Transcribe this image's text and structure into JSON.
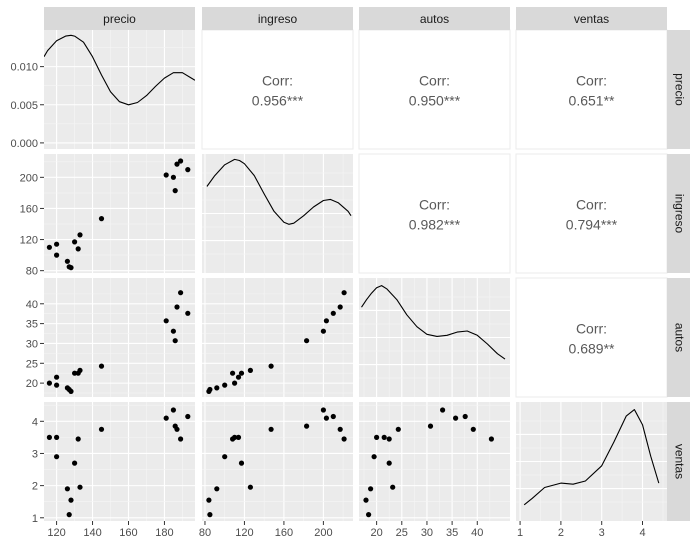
{
  "chart_data": {
    "type": "scatter",
    "subtype": "pairs-plot (ggpairs scatterplot matrix)",
    "variables": [
      "precio",
      "ingreso",
      "autos",
      "ventas"
    ],
    "grid": true,
    "corr_label": "Corr:",
    "correlations": [
      {
        "row": 0,
        "col": 1,
        "value": "0.956***"
      },
      {
        "row": 0,
        "col": 2,
        "value": "0.950***"
      },
      {
        "row": 0,
        "col": 3,
        "value": "0.651**"
      },
      {
        "row": 1,
        "col": 2,
        "value": "0.982***"
      },
      {
        "row": 1,
        "col": 3,
        "value": "0.794***"
      },
      {
        "row": 2,
        "col": 3,
        "value": "0.689**"
      }
    ],
    "axes": {
      "precio": {
        "range": [
          113,
          197
        ],
        "ticks": [
          120,
          140,
          160,
          180
        ]
      },
      "ingreso": {
        "range": [
          77,
          230
        ],
        "ticks": [
          80,
          120,
          160,
          200
        ]
      },
      "autos": {
        "range": [
          16.5,
          46.5
        ],
        "ticks": [
          20,
          25,
          30,
          35,
          40
        ]
      },
      "ventas": {
        "range": [
          0.9,
          4.6
        ],
        "ticks": [
          1,
          2,
          3,
          4
        ]
      }
    },
    "density_y_axis": {
      "range": [
        -0.0008,
        0.0148
      ],
      "ticks": [
        0.0,
        0.005,
        0.01
      ],
      "tick_labels": [
        "0.000",
        "0.005",
        "0.010"
      ]
    },
    "observations": [
      {
        "precio": 116,
        "ingreso": 110,
        "autos": 20.0,
        "ventas": 3.5
      },
      {
        "precio": 120,
        "ingreso": 100,
        "autos": 19.5,
        "ventas": 2.9
      },
      {
        "precio": 120,
        "ingreso": 114,
        "autos": 21.5,
        "ventas": 3.5
      },
      {
        "precio": 126,
        "ingreso": 92,
        "autos": 18.8,
        "ventas": 1.9
      },
      {
        "precio": 127,
        "ingreso": 85,
        "autos": 18.4,
        "ventas": 1.1
      },
      {
        "precio": 128,
        "ingreso": 84,
        "autos": 17.9,
        "ventas": 1.55
      },
      {
        "precio": 130,
        "ingreso": 117,
        "autos": 22.5,
        "ventas": 2.7
      },
      {
        "precio": 132,
        "ingreso": 108,
        "autos": 22.5,
        "ventas": 3.45
      },
      {
        "precio": 133,
        "ingreso": 126,
        "autos": 23.2,
        "ventas": 1.95
      },
      {
        "precio": 145,
        "ingreso": 147,
        "autos": 24.3,
        "ventas": 3.75
      },
      {
        "precio": 181,
        "ingreso": 203,
        "autos": 35.7,
        "ventas": 4.1
      },
      {
        "precio": 185,
        "ingreso": 200,
        "autos": 33.1,
        "ventas": 4.35
      },
      {
        "precio": 186,
        "ingreso": 183,
        "autos": 30.7,
        "ventas": 3.85
      },
      {
        "precio": 187,
        "ingreso": 217,
        "autos": 39.2,
        "ventas": 3.75
      },
      {
        "precio": 189,
        "ingreso": 221,
        "autos": 42.8,
        "ventas": 3.45
      },
      {
        "precio": 193,
        "ingreso": 210,
        "autos": 37.6,
        "ventas": 4.15
      }
    ],
    "density_curves": {
      "precio": {
        "x": [
          113,
          115,
          120,
          125,
          128,
          130,
          135,
          140,
          145,
          150,
          155,
          160,
          165,
          170,
          175,
          180,
          185,
          190,
          195,
          197
        ],
        "y": [
          0.0113,
          0.0121,
          0.0134,
          0.014,
          0.0141,
          0.014,
          0.0132,
          0.0113,
          0.0089,
          0.0067,
          0.0054,
          0.005,
          0.0053,
          0.0062,
          0.0074,
          0.0085,
          0.0092,
          0.0092,
          0.0085,
          0.0082
        ]
      },
      "ingreso": {
        "x": [
          82,
          90,
          100,
          110,
          115,
          120,
          130,
          140,
          150,
          160,
          165,
          170,
          180,
          190,
          200,
          207,
          215,
          225,
          228
        ],
        "y": [
          0.75,
          0.85,
          0.95,
          1.0,
          0.99,
          0.96,
          0.85,
          0.68,
          0.52,
          0.42,
          0.4,
          0.41,
          0.48,
          0.56,
          0.62,
          0.63,
          0.6,
          0.52,
          0.48
        ]
      },
      "autos": {
        "x": [
          17,
          18,
          19,
          20,
          21,
          22,
          24,
          26,
          28,
          30,
          32,
          34,
          36,
          38,
          40,
          42,
          44,
          45.5
        ],
        "y": [
          0.78,
          0.85,
          0.91,
          0.96,
          0.98,
          0.95,
          0.85,
          0.71,
          0.6,
          0.53,
          0.51,
          0.52,
          0.55,
          0.56,
          0.52,
          0.44,
          0.35,
          0.3
        ]
      },
      "ventas": {
        "x": [
          1.1,
          1.3,
          1.6,
          2.0,
          2.3,
          2.6,
          3.0,
          3.3,
          3.6,
          3.8,
          4.0,
          4.2,
          4.4
        ],
        "y": [
          0.1,
          0.16,
          0.26,
          0.3,
          0.29,
          0.32,
          0.46,
          0.68,
          0.92,
          0.98,
          0.84,
          0.55,
          0.3
        ]
      }
    }
  }
}
